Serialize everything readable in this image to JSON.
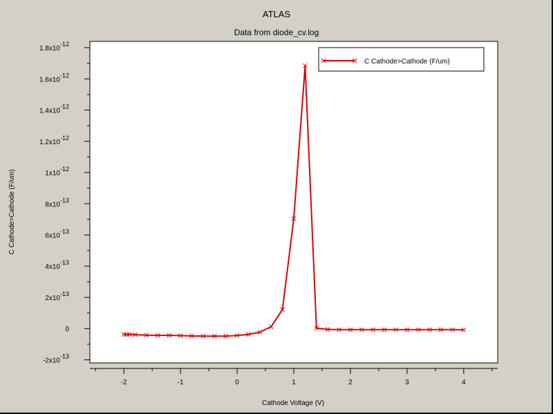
{
  "chart_data": {
    "type": "line",
    "title": "ATLAS",
    "subtitle": "Data from diode_cv.log",
    "xlabel": "Cathode Voltage (V)",
    "ylabel": "C Cathode>Cathode (F/um)",
    "xlim": [
      -2.6,
      4.6
    ],
    "ylim": [
      -2.2e-13,
      1.84e-12
    ],
    "x_ticks": [
      -2,
      -1,
      0,
      1,
      2,
      3,
      4
    ],
    "x_tick_labels": [
      "-2",
      "-1",
      "0",
      "1",
      "2",
      "3",
      "4"
    ],
    "y_ticks": [
      {
        "value": -2e-13,
        "mantissa": "-2x10",
        "exp": "-13"
      },
      {
        "value": 0,
        "mantissa": "0",
        "exp": ""
      },
      {
        "value": 2e-13,
        "mantissa": "2x10",
        "exp": "-13"
      },
      {
        "value": 4e-13,
        "mantissa": "4x10",
        "exp": "-13"
      },
      {
        "value": 6e-13,
        "mantissa": "6x10",
        "exp": "-13"
      },
      {
        "value": 8e-13,
        "mantissa": "8x10",
        "exp": "-13"
      },
      {
        "value": 1e-12,
        "mantissa": "1x10",
        "exp": "-12"
      },
      {
        "value": 1.2e-12,
        "mantissa": "1.2x10",
        "exp": "-12"
      },
      {
        "value": 1.4e-12,
        "mantissa": "1.4x10",
        "exp": "-12"
      },
      {
        "value": 1.6e-12,
        "mantissa": "1.6x10",
        "exp": "-12"
      },
      {
        "value": 1.8e-12,
        "mantissa": "1.8x10",
        "exp": "-12"
      }
    ],
    "grid": false,
    "legend": "top-right",
    "series": [
      {
        "name": "C Cathode>Cathode (F/um)",
        "color": "#e00000",
        "marker": "x",
        "x": [
          -2.0,
          -1.95,
          -1.9,
          -1.8,
          -1.6,
          -1.4,
          -1.2,
          -1.0,
          -0.8,
          -0.6,
          -0.4,
          -0.2,
          0.0,
          0.2,
          0.4,
          0.6,
          0.8,
          1.0,
          1.2,
          1.4,
          1.6,
          1.8,
          2.0,
          2.2,
          2.4,
          2.6,
          2.8,
          3.0,
          3.2,
          3.4,
          3.6,
          3.8,
          4.0
        ],
        "y": [
          -3.7e-14,
          -3.8e-14,
          -3.7e-14,
          -3.9e-14,
          -4.2e-14,
          -4.3e-14,
          -4.3e-14,
          -4.5e-14,
          -4.7e-14,
          -4.8e-14,
          -4.8e-14,
          -4.8e-14,
          -4.4e-14,
          -3.7e-14,
          -2.3e-14,
          1.2e-14,
          1.22e-13,
          7.05e-13,
          1.685e-12,
          3e-15,
          -5e-15,
          -7e-15,
          -7e-15,
          -7e-15,
          -7e-15,
          -7e-15,
          -7e-15,
          -7e-15,
          -7e-15,
          -7e-15,
          -7e-15,
          -7e-15,
          -8e-15
        ]
      }
    ]
  }
}
